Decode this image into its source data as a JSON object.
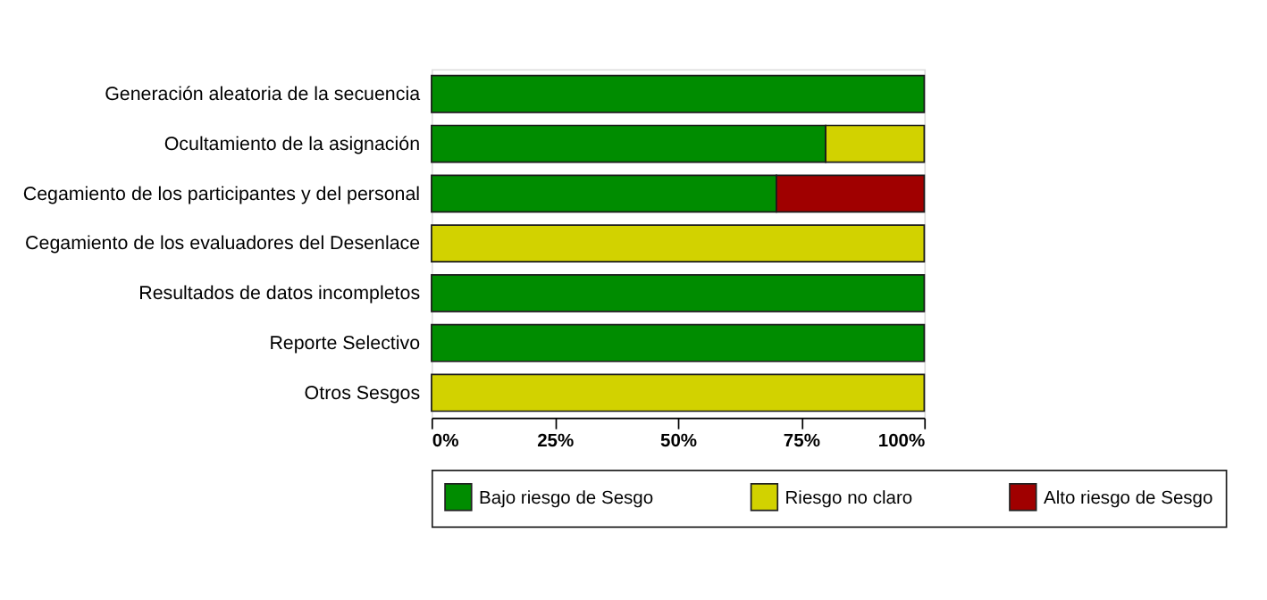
{
  "chart_data": {
    "type": "bar",
    "orientation": "horizontal",
    "stacked": true,
    "categories": [
      "Generación aleatoria de la secuencia",
      "Ocultamiento de la asignación",
      "Cegamiento de los participantes y del personal",
      "Cegamiento de los evaluadores del Desenlace",
      "Resultados de datos incompletos",
      "Reporte Selectivo",
      "Otros Sesgos"
    ],
    "series": [
      {
        "name": "Bajo riesgo de Sesgo",
        "color": "#008c00",
        "values": [
          100,
          80,
          70,
          null,
          100,
          100,
          null
        ]
      },
      {
        "name": "Riesgo no claro",
        "color": "#d2d200",
        "values": [
          null,
          20,
          null,
          100,
          null,
          null,
          100
        ]
      },
      {
        "name": "Alto riesgo de Sesgo",
        "color": "#a00000",
        "values": [
          null,
          null,
          30,
          null,
          null,
          null,
          null
        ]
      }
    ],
    "xlim": [
      0,
      100
    ],
    "xticks": [
      {
        "value": 0,
        "label": "0%"
      },
      {
        "value": 25,
        "label": "25%"
      },
      {
        "value": 50,
        "label": "50%"
      },
      {
        "value": 75,
        "label": "75%"
      },
      {
        "value": 100,
        "label": "100%"
      }
    ],
    "grid": false,
    "legend": "bottom"
  }
}
